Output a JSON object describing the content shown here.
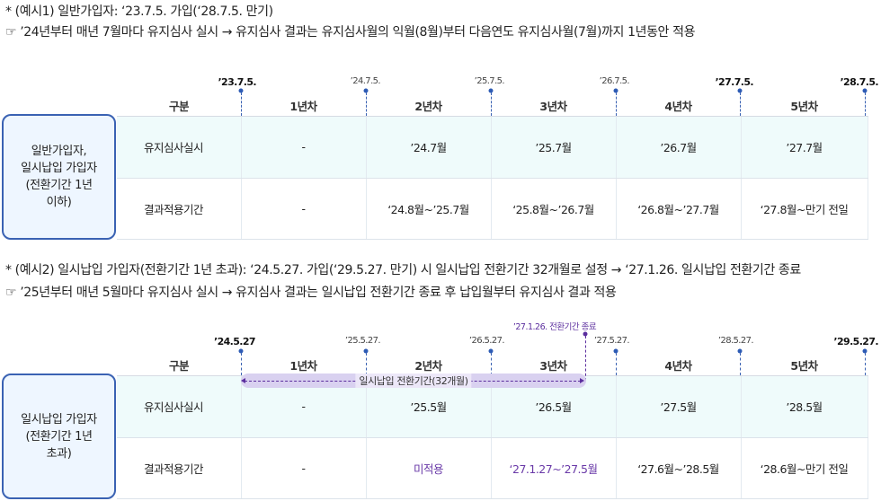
{
  "example1": {
    "line1": "* (예시1) 일반가입자: ‘23.7.5. 가입(‘28.7.5. 만기)",
    "line2": "☞ ’24년부터 매년 7월마다 유지심사 실시 → 유지심사 결과는 유지심사월의 익월(8월)부터 다음연도 유지심사월(7월)까지 1년동안 적용",
    "box_label": "일반가입자,\n일시납입 가입자\n(전환기간 1년\n이하)",
    "ticks": [
      "’23.7.5.",
      "’24.7.5.",
      "’25.7.5.",
      "’26.7.5.",
      "’27.7.5.",
      "’28.7.5."
    ],
    "headers": [
      "구분",
      "1년차",
      "2년차",
      "3년차",
      "4년차",
      "5년차"
    ],
    "row_exec": [
      "유지심사실시",
      "-",
      "’24.7월",
      "’25.7월",
      "’26.7월",
      "’27.7월"
    ],
    "row_apply": [
      "결과적용기간",
      "-",
      "‘24.8월~’25.7월",
      "‘25.8월~’26.7월",
      "‘26.8월~’27.7월",
      "‘27.8월~만기 전일"
    ]
  },
  "example2": {
    "line1": "* (예시2) 일시납입 가입자(전환기간 1년 초과): ‘24.5.27. 가입(‘29.5.27. 만기) 시 일시납입 전환기간 32개월로 설정 → ‘27.1.26. 일시납입 전환기간 종료",
    "line2": "☞ ’25년부터 매년 5월마다 유지심사 실시 → 유지심사 결과는 일시납입 전환기간 종료 후 납입월부터 유지심사 결과 적용",
    "box_label": "일시납입 가입자\n(전환기간 1년\n초과)",
    "ticks": [
      "’24.5.27",
      "’25.5.27.",
      "’26.5.27.",
      "’27.5.27.",
      "’28.5.27.",
      "’29.5.27."
    ],
    "end_annotation": "’27.1.26. 전환기간 종료",
    "period_label": "일시납입 전환기간(32개월)",
    "headers": [
      "구분",
      "1년차",
      "2년차",
      "3년차",
      "4년차",
      "5년차"
    ],
    "row_exec": [
      "유지심사실시",
      "-",
      "’25.5월",
      "’26.5월",
      "’27.5월",
      "’28.5월"
    ],
    "row_apply": [
      "결과적용기간",
      "-",
      "미적용",
      "‘27.1.27~’27.5월",
      "‘27.6월~’28.5월",
      "‘28.6월~만기 전일"
    ]
  },
  "colors": {
    "box_border": "#3a62b3",
    "box_fill": "#eef6ff",
    "row_highlight": "#effbfb",
    "accent_purple": "#6a3aa8"
  }
}
